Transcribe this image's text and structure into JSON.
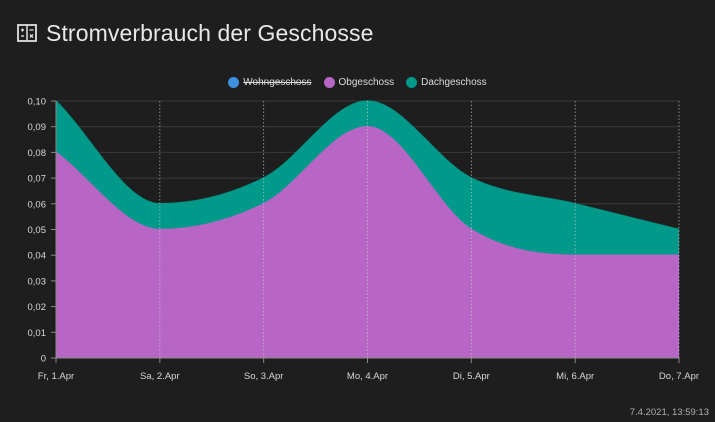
{
  "header": {
    "title": "Stromverbrauch der Geschosse",
    "icon": "sum-icon"
  },
  "timestamp": "7.4.2021, 13:59:13",
  "colors": {
    "background": "#1e1e1e",
    "Wohngeschoss": "#3d8fe0",
    "Obgeschoss": "#b866c6",
    "Dachgeschoss": "#00998a"
  },
  "chart_data": {
    "type": "area",
    "stacked": true,
    "categories": [
      "Fr, 1.Apr",
      "Sa, 2.Apr",
      "So, 3.Apr",
      "Mo, 4.Apr",
      "Di, 5.Apr",
      "Mi, 6.Apr",
      "Do, 7.Apr"
    ],
    "series": [
      {
        "name": "Wohngeschoss",
        "values": [
          0,
          0,
          0,
          0,
          0,
          0,
          0
        ],
        "hidden": true
      },
      {
        "name": "Obgeschoss",
        "values": [
          0.08,
          0.05,
          0.06,
          0.09,
          0.05,
          0.04,
          0.04
        ],
        "hidden": false
      },
      {
        "name": "Dachgeschoss",
        "values": [
          0.02,
          0.01,
          0.01,
          0.01,
          0.02,
          0.02,
          0.01
        ],
        "hidden": false
      }
    ],
    "yticks": [
      "0",
      "0,01",
      "0,02",
      "0,03",
      "0,04",
      "0,05",
      "0,06",
      "0,07",
      "0,08",
      "0,09",
      "0,10"
    ],
    "ylim": [
      0,
      0.1
    ],
    "grid": true,
    "legend_position": "top-center",
    "title": "",
    "xlabel": "",
    "ylabel": ""
  }
}
